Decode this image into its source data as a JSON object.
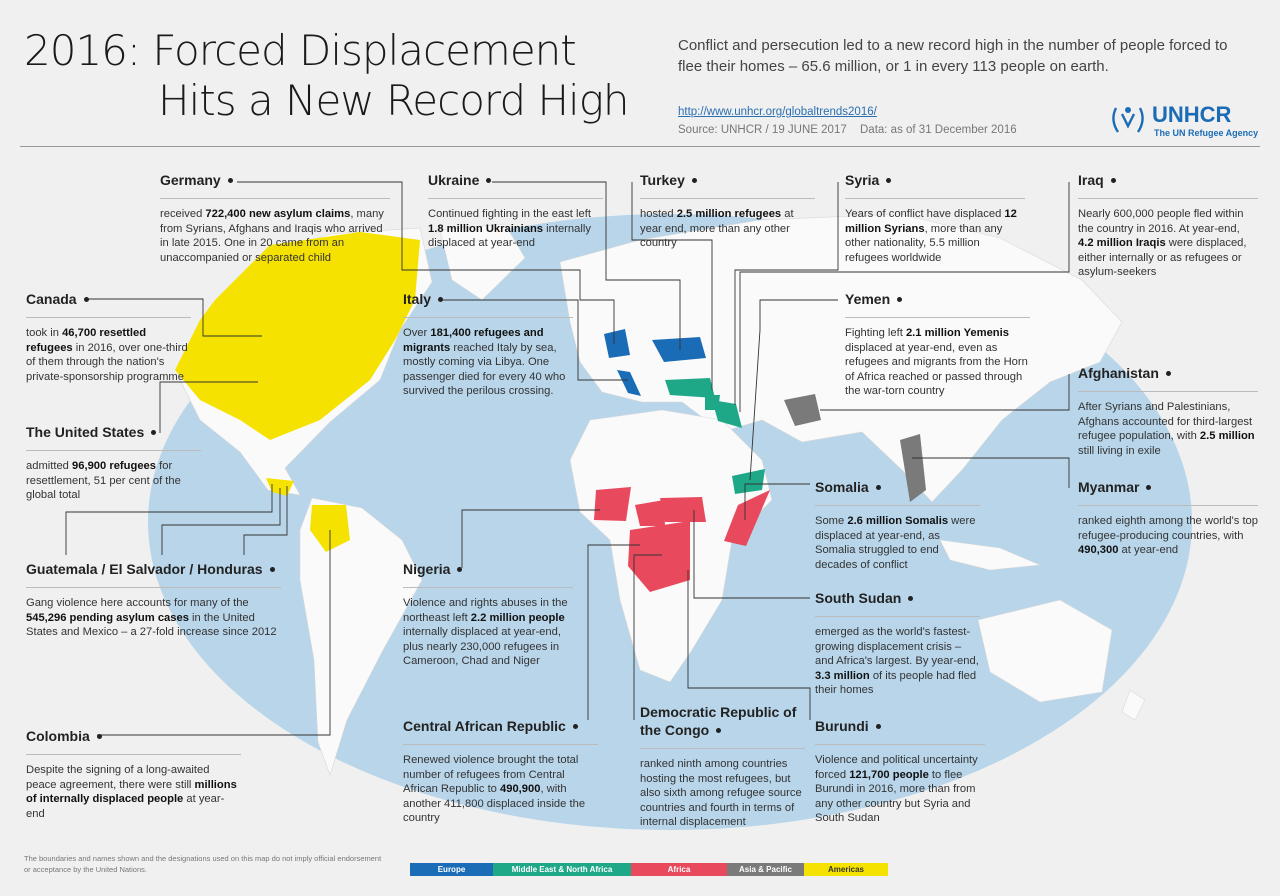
{
  "header": {
    "title_line1": "2016: Forced Displacement",
    "title_line2": "Hits a New Record High",
    "subtitle": "Conflict and persecution led to a new record high in the number of people forced to flee their homes – 65.6 million, or 1 in every 113 people on earth.",
    "url": "http://www.unhcr.org/globaltrends2016/",
    "source": "Source: UNHCR / 19 JUNE 2017",
    "data_note": "Data: as of 31 December 2016",
    "logo": "UNHCR",
    "logo_sub": "The UN Refugee Agency"
  },
  "callouts": [
    {
      "title": "Germany",
      "body": [
        "received ",
        "722,400 new asylum claims",
        ", many from Syrians, Afghans and Iraqis who arrived in late 2015. One in 20 came from an unaccompanied or separated child"
      ]
    },
    {
      "title": "Ukraine",
      "body": [
        "Continued fighting in the east left ",
        "1.8 million Ukrainians",
        " internally displaced at year-end"
      ]
    },
    {
      "title": "Turkey",
      "body": [
        "hosted ",
        "2.5 million refugees",
        " at year end, more than any other country"
      ]
    },
    {
      "title": "Syria",
      "body": [
        "Years of conflict have displaced ",
        "12 million Syrians",
        ", more than any other nationality, 5.5 million refugees worldwide"
      ]
    },
    {
      "title": "Iraq",
      "body": [
        "Nearly 600,000 people fled within the country in 2016. At year-end, ",
        "4.2 million Iraqis",
        " were displaced, either internally or as refugees or asylum-seekers"
      ]
    },
    {
      "title": "Canada",
      "body": [
        "took in ",
        "46,700 resettled refugees",
        " in 2016, over one-third of them through the nation's private-sponsorship programme"
      ]
    },
    {
      "title": "Italy",
      "body": [
        "Over ",
        "181,400 refugees and migrants",
        " reached Italy by sea, mostly coming via Libya. One passenger died for every 40 who survived the perilous crossing."
      ]
    },
    {
      "title": "Yemen",
      "body": [
        "Fighting left ",
        "2.1 million Yemenis",
        " displaced at year-end, even as refugees and migrants from the Horn of Africa reached or passed through the war-torn country"
      ]
    },
    {
      "title": "Afghanistan",
      "body": [
        "After Syrians and Palestinians, Afghans accounted for third-largest refugee population, with ",
        "2.5 million",
        " still living in exile"
      ]
    },
    {
      "title": "The United States",
      "body": [
        "admitted ",
        "96,900 refugees",
        " for resettlement, 51 per cent of the global total"
      ]
    },
    {
      "title": "Somalia",
      "body": [
        "Some ",
        "2.6 million Somalis",
        " were displaced at year-end, as Somalia struggled to end decades of conflict"
      ]
    },
    {
      "title": "Myanmar",
      "body": [
        "ranked eighth among the world's top refugee-producing countries, with ",
        "490,300",
        " at year-end"
      ]
    },
    {
      "title": "Guatemala / El Salvador / Honduras",
      "body": [
        "Gang violence here accounts for many of the ",
        "545,296 pending asylum cases",
        " in the United States and Mexico – a 27-fold increase since 2012"
      ]
    },
    {
      "title": "Nigeria",
      "body": [
        "Violence and rights abuses in the northeast left ",
        "2.2 million people",
        " internally displaced at year-end, plus nearly 230,000 refugees in Cameroon, Chad and Niger"
      ]
    },
    {
      "title": "South Sudan",
      "body": [
        "emerged as the world's fastest-growing displacement crisis – and Africa's largest. By year-end, ",
        "3.3 million",
        " of its people had fled their homes"
      ]
    },
    {
      "title": "Colombia",
      "body": [
        "Despite the signing of a long-awaited peace agreement, there were still ",
        "millions of internally displaced people",
        " at year-end"
      ]
    },
    {
      "title": "Central African Republic",
      "body": [
        "Renewed violence brought the total number of refugees from Central African Republic to ",
        "490,900",
        ", with another 411,800 displaced inside the country"
      ]
    },
    {
      "title": "Democratic Republic of the Congo",
      "body": [
        "ranked ninth among countries hosting the most refugees, but also sixth among refugee source countries and fourth in terms of internal displacement"
      ]
    },
    {
      "title": "Burundi",
      "body": [
        "Violence and political uncertainty forced ",
        "121,700 people",
        " to flee Burundi in 2016, more than from any other country but Syria and South Sudan"
      ]
    }
  ],
  "legend": [
    {
      "label": "Europe",
      "color": "#1b6cb6"
    },
    {
      "label": "Middle East & North Africa",
      "color": "#1fa887"
    },
    {
      "label": "Africa",
      "color": "#e8495c"
    },
    {
      "label": "Asia & Pacific",
      "color": "#7a7a7a"
    },
    {
      "label": "Americas",
      "color": "#f6e200"
    }
  ],
  "disclaimer": "The boundaries and names shown and the designations used on this map do not imply official endorsement or acceptance by the United Nations."
}
